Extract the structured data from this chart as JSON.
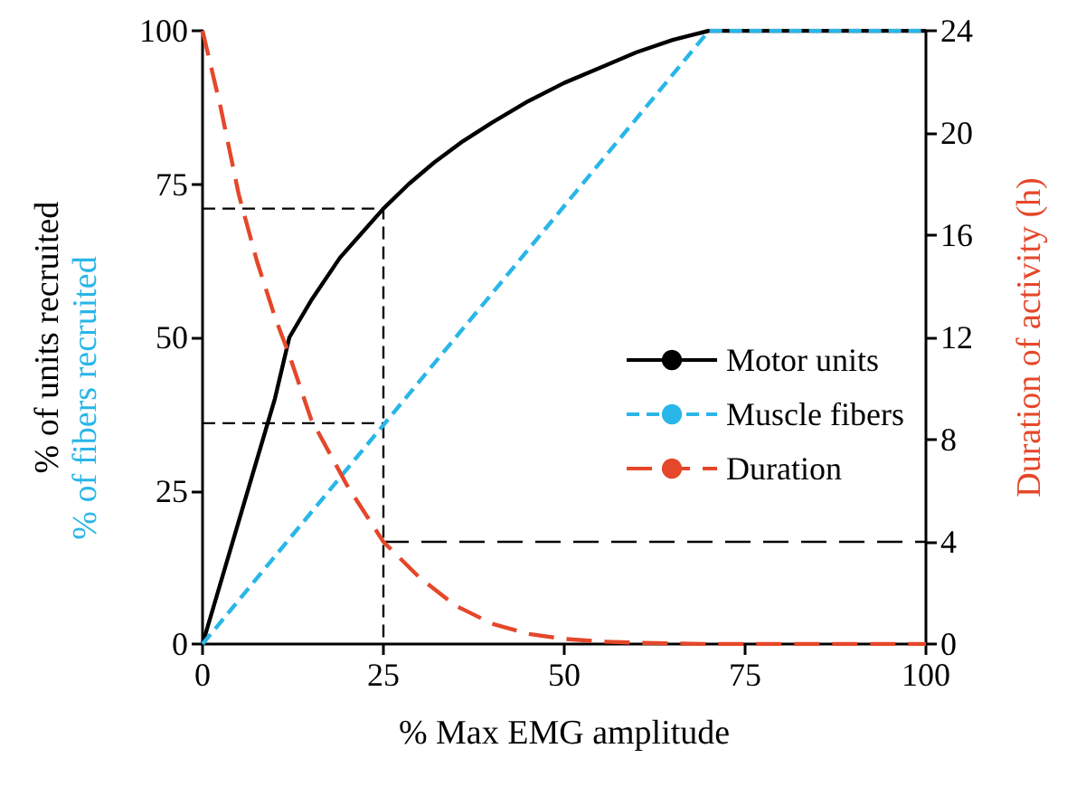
{
  "chart_data": {
    "type": "line",
    "xlabel": "% Max EMG amplitude",
    "ylabel": "% of units recruited",
    "y2label": "Duration of activity (h)",
    "annotations": [
      "% of fibers recruited"
    ],
    "xlim": [
      0,
      100
    ],
    "xticks": [
      0,
      25,
      50,
      75,
      100
    ],
    "ylim": [
      0,
      100
    ],
    "yticks": [
      0,
      25,
      50,
      75,
      100
    ],
    "y2lim": [
      0,
      24
    ],
    "y2ticks": [
      0,
      4,
      8,
      12,
      16,
      20,
      24
    ],
    "grid": false,
    "legend": "right",
    "marker": "none",
    "series": [
      {
        "name": "Motor units",
        "color": "#000000",
        "line_style": "solid",
        "x": [
          0,
          5,
          10,
          12,
          15,
          19,
          22,
          25,
          28.5,
          32,
          36,
          40,
          45,
          50,
          55,
          60,
          65,
          70,
          100
        ],
        "values": [
          0,
          20,
          40,
          50,
          56,
          63,
          67,
          71,
          75,
          78.5,
          82,
          85,
          88.5,
          91.5,
          94,
          96.5,
          98.5,
          100,
          100
        ]
      },
      {
        "name": "Muscle fibers",
        "color": "#29b6e8",
        "line_style": "dashed",
        "x": [
          0,
          70,
          100
        ],
        "values": [
          0,
          100,
          100
        ]
      },
      {
        "name": "Duration",
        "color": "#e5472a",
        "line_style": "dashed",
        "axis": "y2",
        "x": [
          0,
          2.5,
          5,
          7.5,
          10,
          12,
          15,
          20,
          25,
          30,
          35,
          40,
          45,
          50,
          55,
          60,
          70,
          100
        ],
        "values": [
          24,
          21,
          17.6,
          15,
          12.8,
          11.3,
          8.8,
          6.2,
          4,
          2.6,
          1.5,
          0.8,
          0.4,
          0.2,
          0.1,
          0.05,
          0,
          0
        ]
      },
      {
        "color": "#000000",
        "line_style": "dashed",
        "x": [
          0,
          25,
          25
        ],
        "values": [
          71,
          71,
          0
        ]
      },
      {
        "color": "#000000",
        "line_style": "dashed",
        "x": [
          0,
          25
        ],
        "values": [
          36,
          36
        ]
      },
      {
        "color": "#000000",
        "line_style": "dashed",
        "axis": "y2",
        "x": [
          25,
          100
        ],
        "values": [
          4,
          4
        ]
      }
    ]
  }
}
